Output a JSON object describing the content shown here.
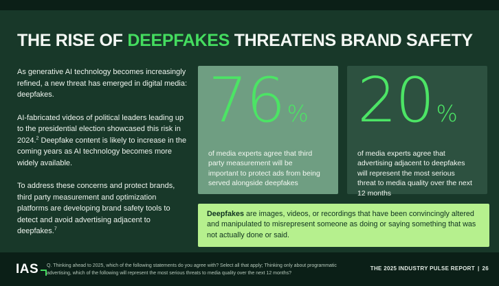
{
  "title": {
    "part1": "THE RISE OF ",
    "accent": "DEEPFAKES",
    "part2": " THREATENS BRAND SAFETY"
  },
  "intro": {
    "p1": "As generative AI technology becomes increasingly refined, a new threat has emerged in digital media: deepfakes.",
    "p2_before": "AI-fabricated videos of political leaders leading up to the presidential election showcased this risk in 2024.",
    "p2_sup": "2",
    "p2_after": " Deepfake content is likely to increase in the coming years as AI technology becomes more widely available.",
    "p3_before": "To address these concerns and protect brands, third party measurement and optimization platforms are developing brand safety tools to detect and avoid advertising adjacent to deepfakes.",
    "p3_sup": "7"
  },
  "stats": [
    {
      "value": "76",
      "unit": "%",
      "description": "of media experts agree that third party measurement will be important to protect ads from being served alongside deepfakes",
      "bg": "#6f9e82"
    },
    {
      "value": "20",
      "unit": "%",
      "description": "of media experts agree that advertising adjacent to deepfakes will represent the most serious threat to media quality over the next 12 months",
      "bg": "#2d5140"
    }
  ],
  "callout": {
    "term": "Deepfakes",
    "body": " are images, videos, or recordings that have been convincingly altered and manipulated to misrepresent someone as doing or saying something that was not actually done or said."
  },
  "footer": {
    "logo": "IAS",
    "note_line1": "Q.  Thinking ahead to 2025, which of the following statements do you agree with? Select all that apply; Thinking only about programmatic",
    "note_line2": "advertising, which of the following will represent the most serious threats to media quality over the next 12 months?",
    "report_label": "THE 2025 INDUSTRY PULSE REPORT",
    "divider": "|",
    "page_number": "26"
  },
  "colors": {
    "background": "#183829",
    "band": "#0b1f17",
    "accent_green": "#44dc5f",
    "stat_number_green": "#4ce465",
    "card1_bg": "#6f9e82",
    "card2_bg": "#2d5140",
    "callout_bg": "#b6f08e",
    "callout_text": "#0f3220"
  }
}
